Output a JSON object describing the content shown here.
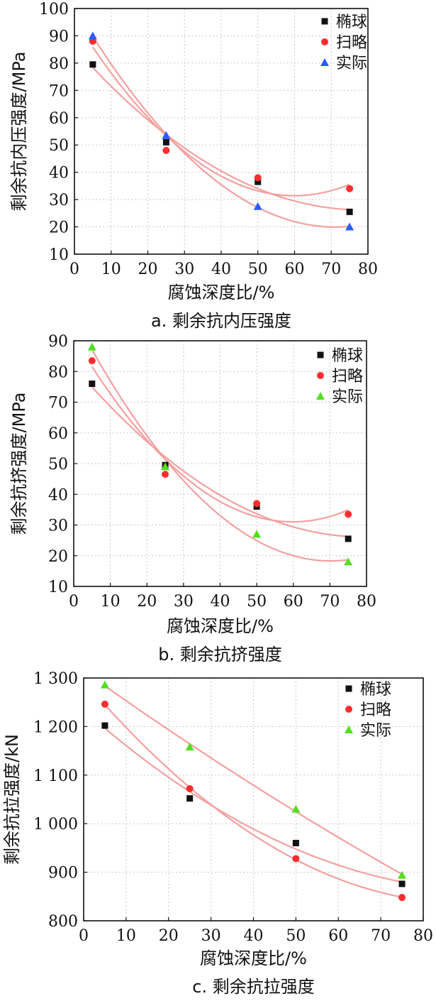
{
  "chart_data": [
    {
      "type": "scatter",
      "caption": "a. 剩余抗内压强度",
      "xlabel": "腐蚀深度比/%",
      "ylabel": "剩余抗内压强度/MPa",
      "xlim": [
        0,
        80
      ],
      "ylim": [
        10,
        100
      ],
      "xticks": [
        0,
        10,
        20,
        30,
        40,
        50,
        60,
        70,
        80
      ],
      "yticks": [
        10,
        20,
        30,
        40,
        50,
        60,
        70,
        80,
        90,
        100
      ],
      "xtick_labels": [
        "0",
        "10",
        "20",
        "30",
        "40",
        "50",
        "60",
        "70",
        "80"
      ],
      "ytick_labels": [
        "10",
        "20",
        "30",
        "40",
        "50",
        "60",
        "70",
        "80",
        "90",
        "100"
      ],
      "grid": true,
      "legend_position": "top-right",
      "series": [
        {
          "name": "椭球",
          "marker": "square",
          "color": "#111111",
          "x": [
            5,
            25,
            50,
            75
          ],
          "y": [
            79.5,
            51,
            36.5,
            25.5
          ]
        },
        {
          "name": "扫略",
          "marker": "circle",
          "color": "#ff2d2d",
          "x": [
            5,
            25,
            50,
            75
          ],
          "y": [
            88,
            48,
            38,
            34
          ]
        },
        {
          "name": "实际",
          "marker": "triangle",
          "color": "#2a5bff",
          "x": [
            5,
            25,
            50,
            75
          ],
          "y": [
            90,
            53.5,
            27.5,
            20
          ]
        }
      ]
    },
    {
      "type": "scatter",
      "caption": "b. 剩余抗挤强度",
      "xlabel": "腐蚀深度比/%",
      "ylabel": "剩余抗挤强度/MPa",
      "xlim": [
        0,
        80
      ],
      "ylim": [
        10,
        90
      ],
      "xticks": [
        0,
        10,
        20,
        30,
        40,
        50,
        60,
        70,
        80
      ],
      "yticks": [
        10,
        20,
        30,
        40,
        50,
        60,
        70,
        80,
        90
      ],
      "xtick_labels": [
        "0",
        "10",
        "20",
        "30",
        "40",
        "50",
        "60",
        "70",
        "80"
      ],
      "ytick_labels": [
        "10",
        "20",
        "30",
        "40",
        "50",
        "60",
        "70",
        "80",
        "90"
      ],
      "grid": true,
      "legend_position": "top-right",
      "series": [
        {
          "name": "椭球",
          "marker": "square",
          "color": "#111111",
          "x": [
            5,
            25,
            50,
            75
          ],
          "y": [
            76,
            49.5,
            36,
            25.5
          ]
        },
        {
          "name": "扫略",
          "marker": "circle",
          "color": "#ff2d2d",
          "x": [
            5,
            25,
            50,
            75
          ],
          "y": [
            83.5,
            46.5,
            37,
            33.5
          ]
        },
        {
          "name": "实际",
          "marker": "triangle",
          "color": "#55dd22",
          "x": [
            5,
            25,
            50,
            75
          ],
          "y": [
            88,
            49,
            27,
            18
          ]
        }
      ]
    },
    {
      "type": "scatter",
      "caption": "c. 剩余抗拉强度",
      "xlabel": "腐蚀深度比/%",
      "ylabel": "剩余抗拉强度/kN",
      "xlim": [
        0,
        80
      ],
      "ylim": [
        800,
        1300
      ],
      "xticks": [
        0,
        10,
        20,
        30,
        40,
        50,
        60,
        70,
        80
      ],
      "yticks": [
        800,
        900,
        1000,
        1100,
        1200,
        1300
      ],
      "xtick_labels": [
        "0",
        "10",
        "20",
        "30",
        "40",
        "50",
        "60",
        "70",
        "80"
      ],
      "ytick_labels": [
        "800",
        "900",
        "1 000",
        "1 100",
        "1 200",
        "1 300"
      ],
      "grid": true,
      "legend_position": "top-right",
      "series": [
        {
          "name": "椭球",
          "marker": "square",
          "color": "#111111",
          "x": [
            5,
            25,
            50,
            75
          ],
          "y": [
            1202,
            1052,
            960,
            876
          ]
        },
        {
          "name": "扫略",
          "marker": "circle",
          "color": "#ff2d2d",
          "x": [
            5,
            25,
            50,
            75
          ],
          "y": [
            1246,
            1072,
            928,
            848
          ]
        },
        {
          "name": "实际",
          "marker": "triangle",
          "color": "#55dd22",
          "x": [
            5,
            25,
            50,
            75
          ],
          "y": [
            1286,
            1158,
            1030,
            894
          ]
        }
      ]
    }
  ],
  "fit_color": "#f4a0a0"
}
